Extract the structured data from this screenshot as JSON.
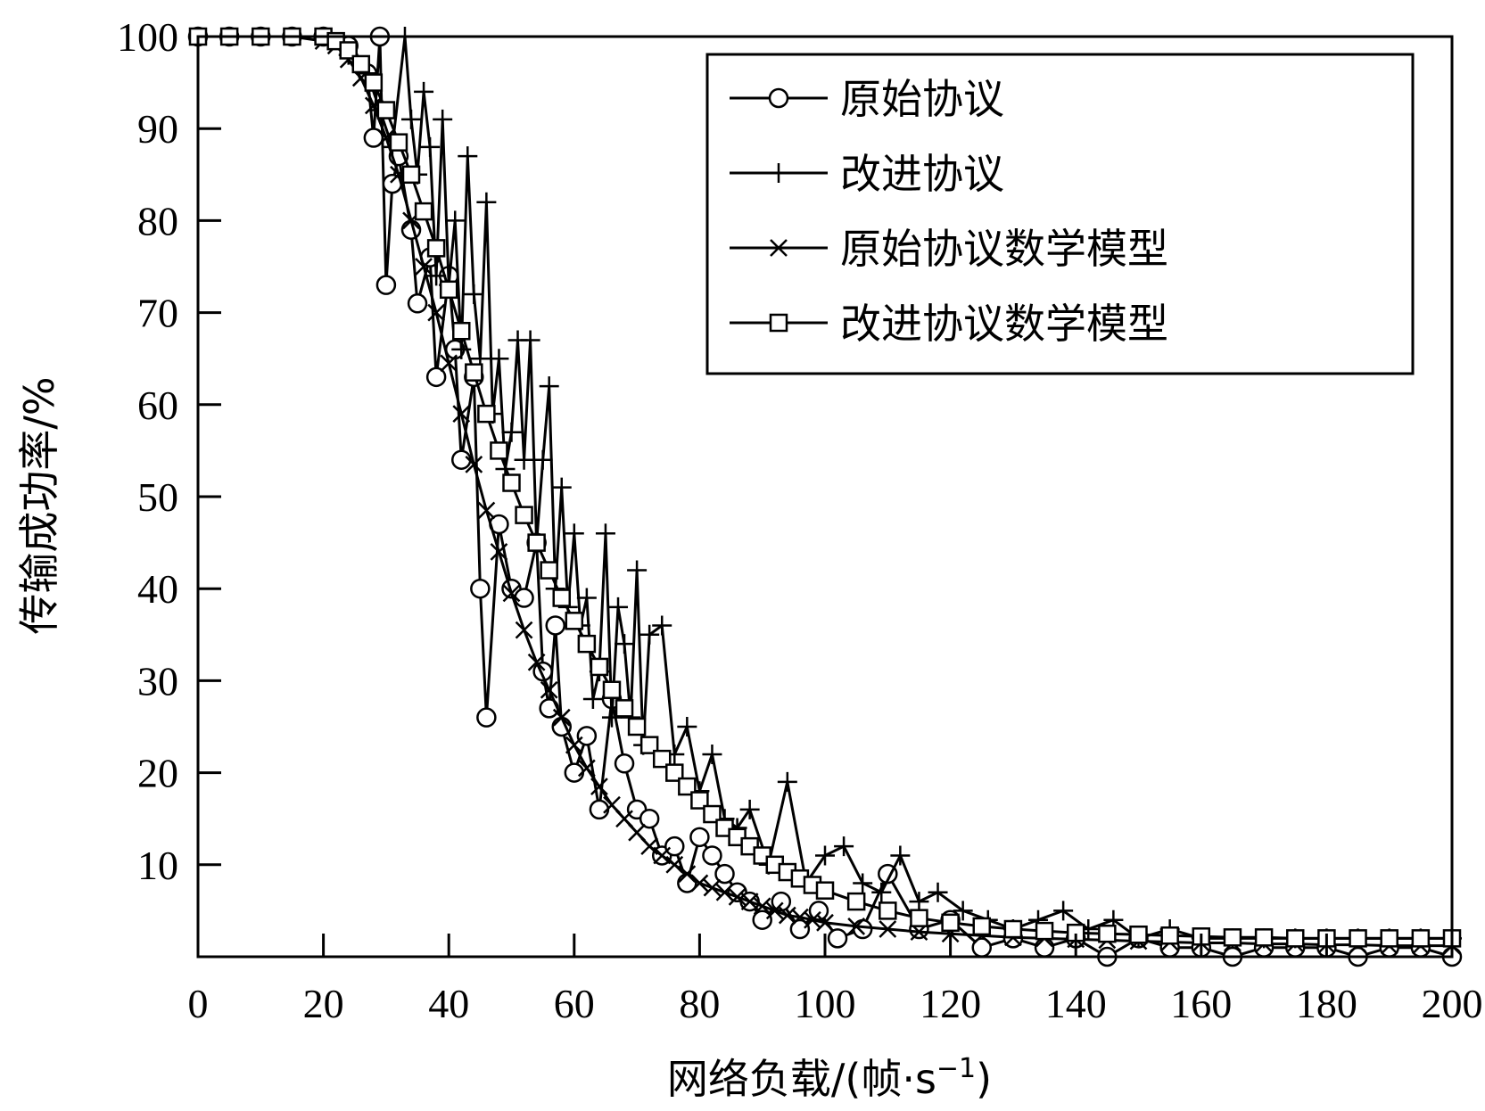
{
  "chart_data": {
    "type": "line",
    "xlabel": "网络负载/(帧·s",
    "xlabel_sup": "−1",
    "xlabel_close": ")",
    "ylabel": "传输成功率/%",
    "xlim": [
      0,
      200
    ],
    "ylim": [
      0,
      100
    ],
    "x_ticks": [
      0,
      20,
      40,
      60,
      80,
      100,
      120,
      140,
      160,
      180,
      200
    ],
    "y_ticks": [
      10,
      20,
      30,
      40,
      50,
      60,
      70,
      80,
      90,
      100
    ],
    "grid": false,
    "legend_position": "top-right",
    "series": [
      {
        "name": "原始协议",
        "marker": "circle",
        "x": [
          0,
          5,
          10,
          15,
          20,
          24,
          27,
          28,
          29,
          30,
          31,
          32,
          34,
          35,
          37,
          38,
          40,
          41,
          42,
          44,
          45,
          46,
          48,
          50,
          52,
          54,
          55,
          56,
          57,
          58,
          60,
          62,
          64,
          66,
          68,
          70,
          72,
          74,
          76,
          78,
          80,
          82,
          84,
          86,
          88,
          90,
          93,
          96,
          99,
          102,
          106,
          110,
          115,
          120,
          125,
          130,
          135,
          140,
          145,
          150,
          155,
          160,
          165,
          170,
          175,
          180,
          185,
          190,
          195,
          200
        ],
        "y": [
          100,
          100,
          100,
          100,
          100,
          99,
          96,
          89,
          100,
          73,
          84,
          87,
          79,
          71,
          76,
          63,
          74,
          66,
          54,
          63,
          40,
          26,
          47,
          40,
          39,
          45,
          31,
          27,
          36,
          25,
          20,
          24,
          16,
          28,
          21,
          16,
          15,
          11,
          12,
          8,
          13,
          11,
          9,
          7,
          6,
          4,
          6,
          3,
          5,
          2,
          3,
          9,
          3,
          4,
          1,
          2,
          1,
          2,
          0,
          2,
          1,
          1,
          0,
          1,
          1,
          1,
          0,
          1,
          1,
          0
        ]
      },
      {
        "name": "改进协议",
        "marker": "plus",
        "x": [
          0,
          5,
          10,
          15,
          20,
          24,
          27,
          29,
          31,
          33,
          34,
          35,
          36,
          37,
          38,
          39,
          40,
          41,
          42,
          43,
          44,
          45,
          46,
          47,
          48,
          49,
          50,
          51,
          52,
          53,
          54,
          55,
          56,
          57,
          58,
          59,
          60,
          61,
          62,
          63,
          64,
          65,
          66,
          67,
          68,
          69,
          70,
          71,
          72,
          74,
          76,
          78,
          80,
          82,
          84,
          86,
          88,
          91,
          94,
          97,
          100,
          103,
          106,
          109,
          112,
          115,
          118,
          122,
          126,
          130,
          134,
          138,
          142,
          146,
          150,
          155,
          160,
          165,
          170,
          175,
          180,
          185,
          190,
          195,
          200
        ],
        "y": [
          100,
          100,
          100,
          100,
          100,
          98,
          96,
          92,
          88,
          100,
          91,
          85,
          94,
          88,
          74,
          91,
          73,
          80,
          66,
          87,
          72,
          65,
          82,
          59,
          65,
          53,
          57,
          67,
          54,
          67,
          45,
          54,
          62,
          40,
          51,
          38,
          46,
          36,
          39,
          28,
          31,
          46,
          26,
          38,
          34,
          26,
          42,
          23,
          35,
          36,
          22,
          25,
          18,
          22,
          15,
          14,
          16,
          10,
          19,
          8,
          11,
          12,
          8,
          7,
          11,
          6,
          7,
          5,
          4,
          3,
          4,
          5,
          3,
          4,
          2,
          3,
          2,
          2,
          2,
          2,
          2,
          2,
          2,
          2,
          2
        ]
      },
      {
        "name": "原始协议数学模型",
        "marker": "x",
        "x": [
          0,
          5,
          10,
          15,
          20,
          22,
          24,
          26,
          28,
          30,
          32,
          34,
          36,
          38,
          40,
          42,
          44,
          46,
          48,
          50,
          52,
          54,
          56,
          58,
          60,
          62,
          64,
          66,
          68,
          70,
          72,
          74,
          76,
          78,
          80,
          82,
          84,
          86,
          88,
          90,
          92,
          94,
          96,
          98,
          100,
          105,
          110,
          115,
          120,
          125,
          130,
          135,
          140,
          145,
          150,
          155,
          160,
          165,
          170,
          175,
          180,
          185,
          190,
          195,
          200
        ],
        "y": [
          100,
          100,
          100,
          100,
          99.5,
          99,
          97.5,
          95.5,
          92.5,
          89,
          85,
          80,
          75,
          70,
          64.5,
          59,
          53.5,
          48.5,
          44,
          39.5,
          35.5,
          32,
          29,
          26,
          23,
          20.5,
          18.5,
          16.5,
          15,
          13.5,
          12,
          11,
          10,
          9,
          8,
          7.5,
          7,
          6.5,
          6,
          5.5,
          5,
          4.5,
          4.3,
          4,
          3.7,
          3.3,
          3,
          2.7,
          2.5,
          2.3,
          2.1,
          2,
          1.9,
          1.8,
          1.7,
          1.6,
          1.5,
          1.5,
          1.4,
          1.4,
          1.3,
          1.3,
          1.2,
          1.2,
          1.2
        ]
      },
      {
        "name": "改进协议数学模型",
        "marker": "square",
        "x": [
          0,
          5,
          10,
          15,
          20,
          22,
          24,
          26,
          28,
          30,
          32,
          34,
          36,
          38,
          40,
          42,
          44,
          46,
          48,
          50,
          52,
          54,
          56,
          58,
          60,
          62,
          64,
          66,
          68,
          70,
          72,
          74,
          76,
          78,
          80,
          82,
          84,
          86,
          88,
          90,
          92,
          94,
          96,
          98,
          100,
          105,
          110,
          115,
          120,
          125,
          130,
          135,
          140,
          145,
          150,
          155,
          160,
          165,
          170,
          175,
          180,
          185,
          190,
          195,
          200
        ],
        "y": [
          100,
          100,
          100,
          100,
          100,
          99.5,
          98.5,
          97,
          95,
          92,
          88.5,
          85,
          81,
          77,
          72.5,
          68,
          63.5,
          59,
          55,
          51.5,
          48,
          45,
          42,
          39,
          36.5,
          34,
          31.5,
          29,
          27,
          25,
          23,
          21.5,
          20,
          18.5,
          17,
          15.5,
          14,
          13,
          12,
          11,
          10,
          9.2,
          8.5,
          7.8,
          7.2,
          6,
          5,
          4.2,
          3.7,
          3.3,
          3,
          2.8,
          2.6,
          2.5,
          2.4,
          2.3,
          2.2,
          2.1,
          2.1,
          2,
          2,
          2,
          2,
          2,
          2
        ]
      }
    ]
  }
}
